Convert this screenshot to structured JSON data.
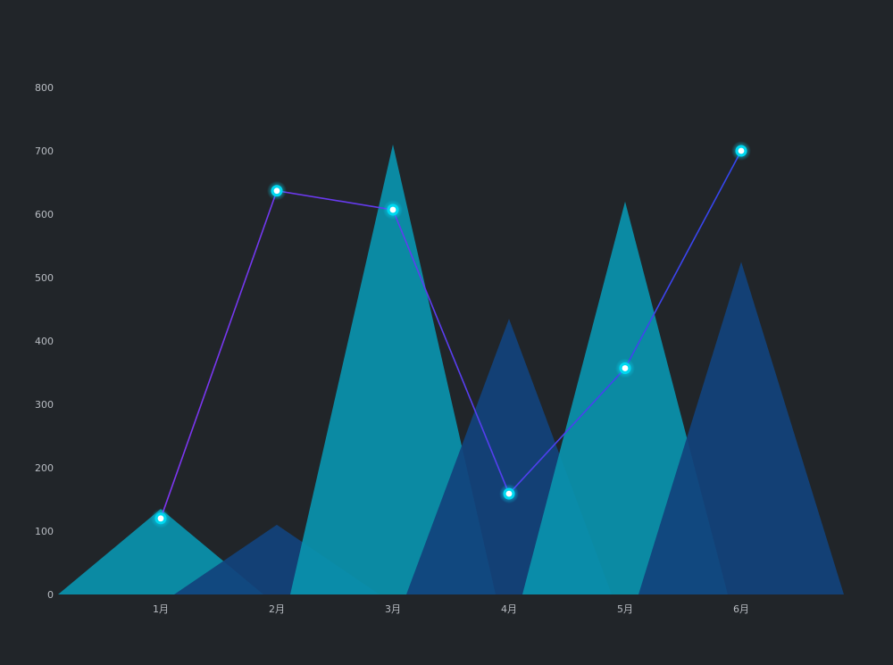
{
  "chart_data": {
    "type": "bar",
    "categories": [
      "1月",
      "2月",
      "3月",
      "4月",
      "5月",
      "6月"
    ],
    "ylim": [
      0,
      800
    ],
    "yticks": [
      0,
      100,
      200,
      300,
      400,
      500,
      600,
      700,
      800
    ],
    "grid": false,
    "series": [
      {
        "kind": "triangle-bar",
        "values": [
          135,
          110,
          710,
          435,
          620,
          525
        ]
      },
      {
        "kind": "line",
        "values": [
          120,
          637,
          607,
          159,
          357,
          700
        ]
      }
    ],
    "colors": {
      "background": "#212529",
      "bar_a": "#0a93ae",
      "bar_b": "#12427c",
      "line_start": "#7f35f0",
      "line_end": "#3346ee",
      "marker": "#00d8f0",
      "tick_text": "#b8bcc2"
    }
  }
}
